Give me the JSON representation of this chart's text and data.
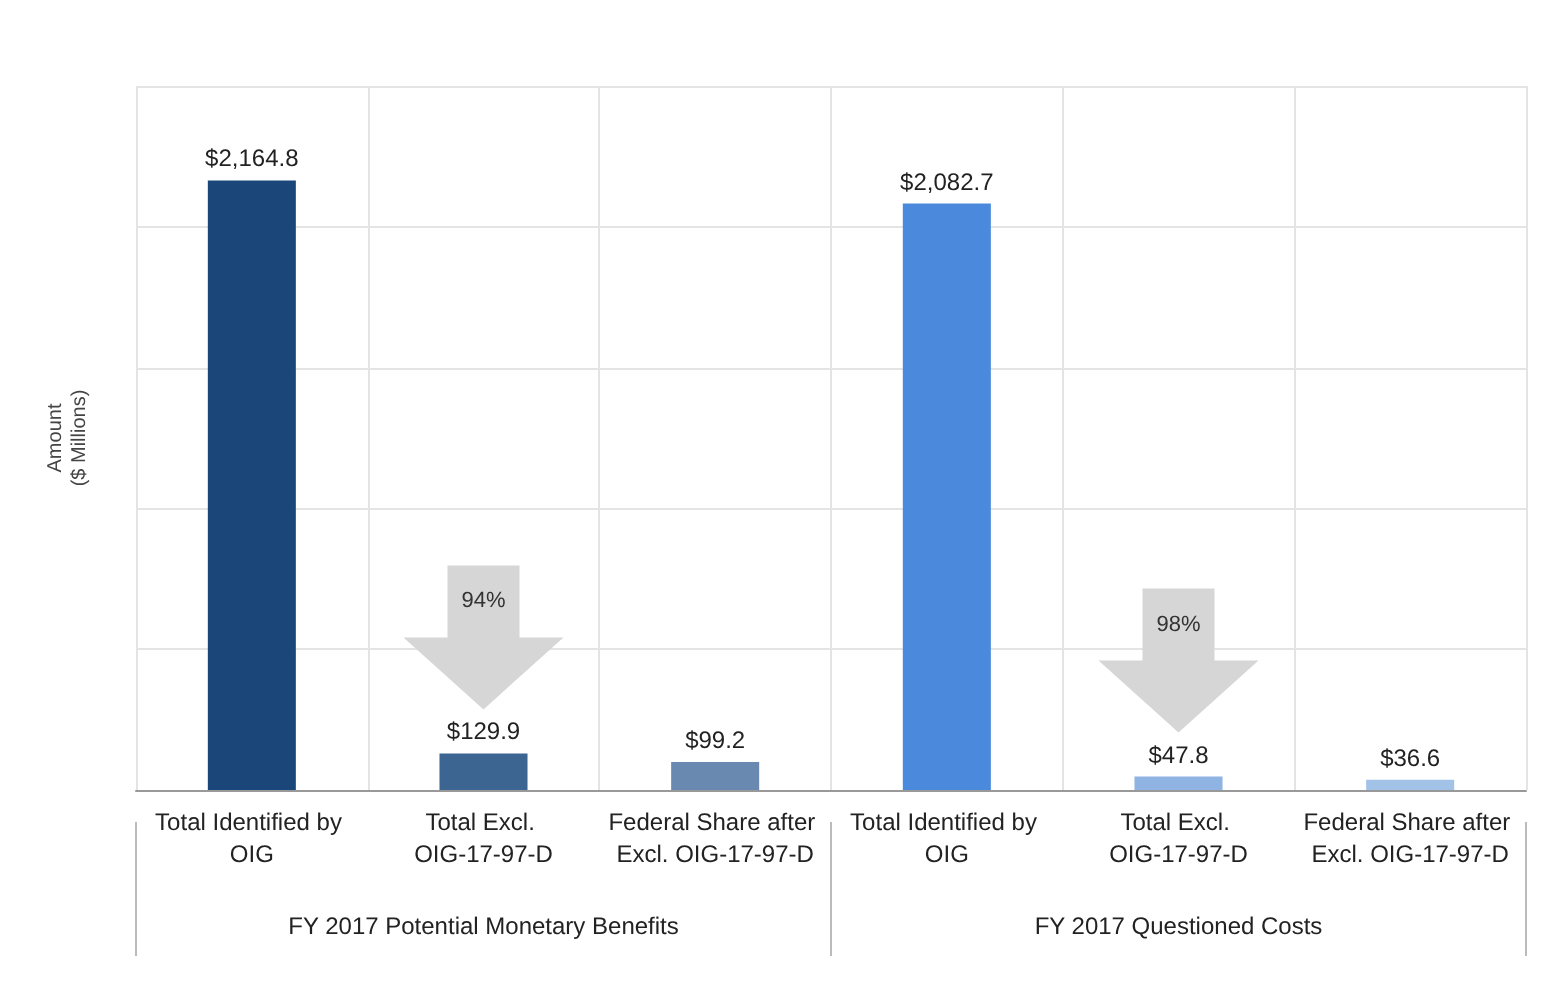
{
  "chart_data": {
    "type": "bar",
    "ylabel": "Amount\n($ Millions)",
    "categories": [
      "Total Identified by OIG",
      "Total Excl. OIG-17-97-D",
      "Federal Share after Excl. OIG-17-97-D",
      "Total Identified by OIG",
      "Total Excl. OIG-17-97-D",
      "Federal Share after Excl. OIG-17-97-D"
    ],
    "values": [
      2164.8,
      129.9,
      99.2,
      2082.7,
      47.8,
      36.6
    ],
    "value_labels": [
      "$2,164.8",
      "$129.9",
      "$99.2",
      "$2,082.7",
      "$47.8",
      "$36.6"
    ],
    "colors": [
      "#1b4679",
      "#3d6591",
      "#6a89b0",
      "#4a89dc",
      "#8fb4e3",
      "#a3c2e8"
    ],
    "ylim": [
      0,
      2500
    ],
    "yticks": [
      {
        "value": 0,
        "label": null
      },
      {
        "value": 500,
        "label": null
      },
      {
        "value": 1000,
        "label": null
      },
      {
        "value": 1500,
        "label": null
      },
      {
        "value": 2000,
        "label": null
      },
      {
        "value": 2500,
        "label": null
      }
    ],
    "tick_labels": "x",
    "grid": true,
    "annotations": [
      "FY 2017 Potential Monetary Benefits",
      "FY 2017 Questioned Costs",
      "94%",
      "98%"
    ]
  }
}
